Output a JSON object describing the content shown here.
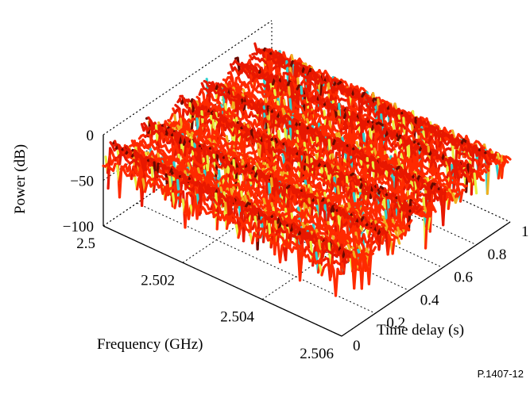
{
  "figure_id": "P.1407-12",
  "chart_data": {
    "type": "surface",
    "title": "",
    "xlabel": "Frequency (GHz)",
    "ylabel": "Time delay (s)",
    "zlabel": "Power (dB)",
    "x_ticks": [
      "2.5",
      "2.502",
      "2.504",
      "2.506"
    ],
    "y_ticks": [
      "0",
      "0.2",
      "0.4",
      "0.6",
      "0.8",
      "1"
    ],
    "z_ticks": [
      "0",
      "−50",
      "−100"
    ],
    "xlim": [
      2.5,
      2.506
    ],
    "ylim": [
      0,
      1
    ],
    "zlim": [
      -100,
      0
    ],
    "grid": true,
    "colormap": [
      "#30d0d0",
      "#e8f040",
      "#f0b020",
      "#ff2a00",
      "#e81800",
      "#6a0a00"
    ],
    "surface_ridges_delay_s": [
      0.05,
      0.25,
      0.45,
      0.6,
      0.78,
      0.9
    ],
    "surface_level_range_db": [
      -90,
      -10
    ]
  }
}
